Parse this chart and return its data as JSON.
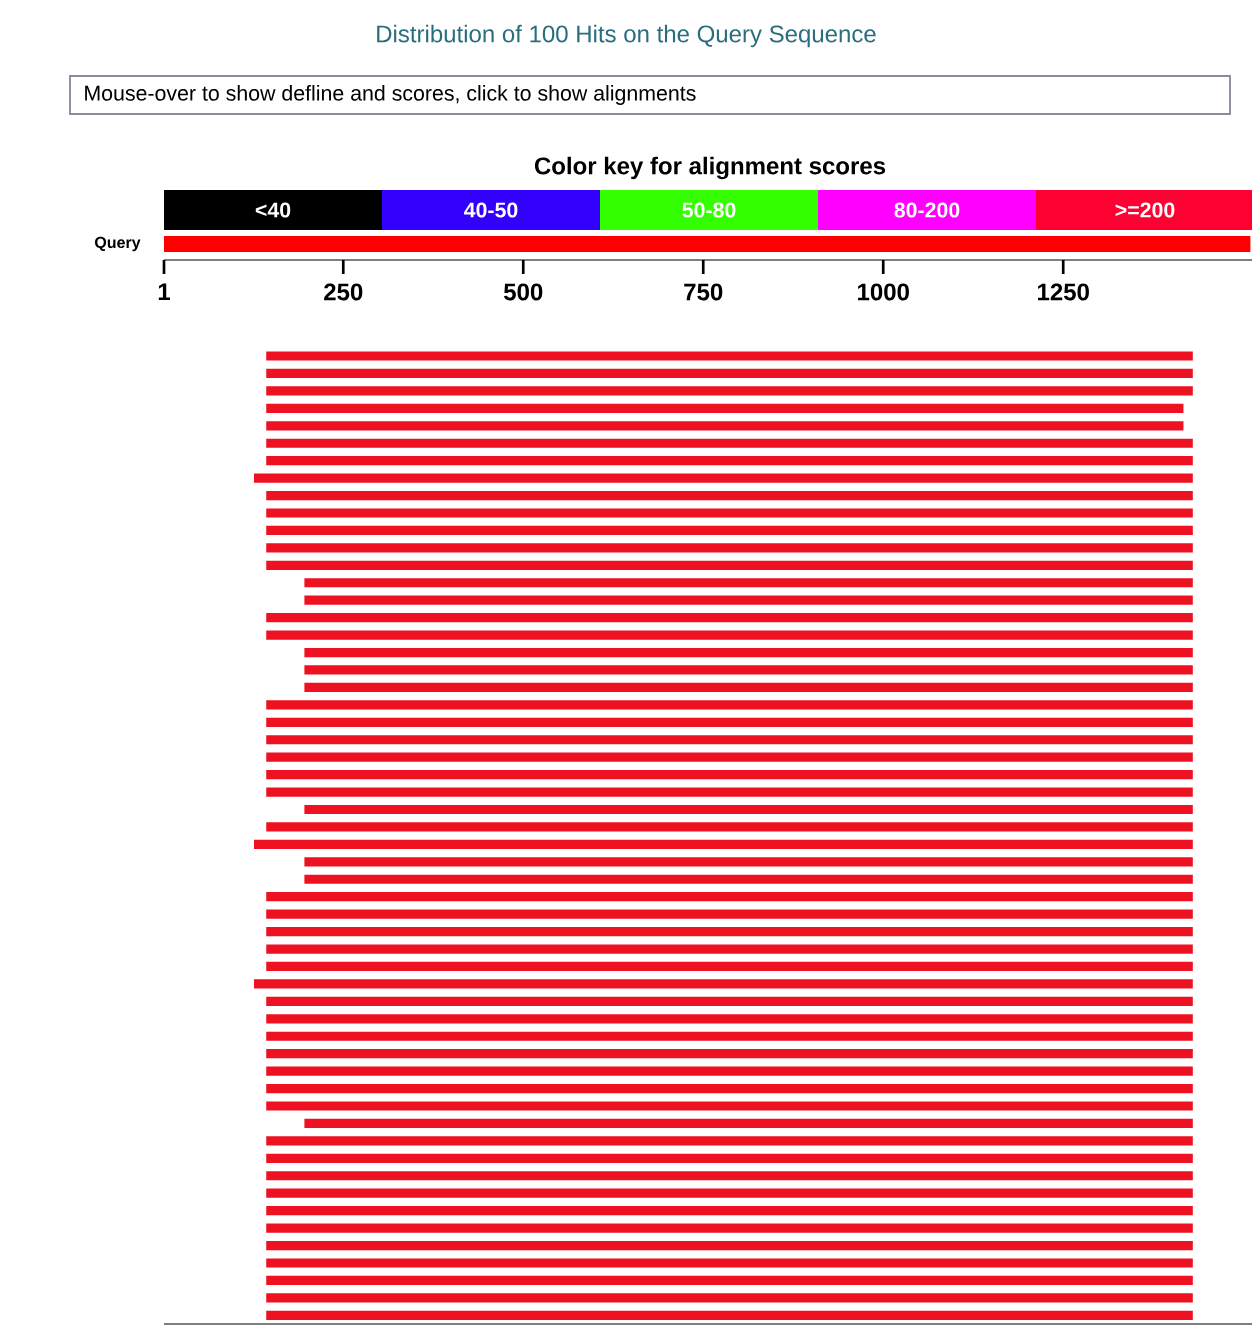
{
  "chart_data": [
    {
      "type": "other",
      "title": "Distribution of 100 Hits on the Query Sequence",
      "annotations": [
        "Mouse-over to show defline and scores, click to show alignments"
      ],
      "legend_title": "Color key for alignment scores",
      "categories": [
        "<40",
        "40-50",
        "50-80",
        "80-200",
        ">=200"
      ],
      "colors": [
        "#000000",
        "#3300ff",
        "#33ff00",
        "#ff00ff",
        "#ff0033"
      ]
    },
    {
      "type": "bar",
      "orientation": "horizontal",
      "categories": [
        "Query"
      ],
      "base": [
        1
      ],
      "values": [
        1509
      ],
      "color": "#ff0000",
      "xlim": [
        1,
        1515
      ],
      "xticks": [
        1,
        250,
        500,
        750,
        1000,
        1250
      ]
    },
    {
      "type": "bar",
      "orientation": "horizontal",
      "tick_labels": false,
      "xlim": [
        1,
        1515
      ],
      "color": "#ee1122",
      "categories": [
        null,
        null,
        null,
        null,
        null,
        null,
        null,
        null,
        null,
        null,
        null,
        null,
        null,
        null,
        null,
        null,
        null,
        null,
        null,
        null,
        null,
        null,
        null,
        null,
        null,
        null,
        null,
        null,
        null,
        null,
        null,
        null,
        null,
        null,
        null,
        null,
        null,
        null,
        null,
        null,
        null,
        null,
        null,
        null,
        null,
        null,
        null,
        null,
        null,
        null,
        null,
        null,
        null,
        null,
        null,
        null
      ],
      "base": [
        143,
        143,
        143,
        143,
        143,
        143,
        143,
        126,
        143,
        143,
        143,
        143,
        143,
        196,
        196,
        143,
        143,
        196,
        196,
        196,
        143,
        143,
        143,
        143,
        143,
        143,
        196,
        143,
        126,
        196,
        196,
        143,
        143,
        143,
        143,
        143,
        126,
        143,
        143,
        143,
        143,
        143,
        143,
        143,
        196,
        143,
        143,
        143,
        143,
        143,
        143,
        143,
        143,
        143,
        143,
        143
      ],
      "values": [
        1287,
        1287,
        1287,
        1274,
        1274,
        1287,
        1287,
        1304,
        1287,
        1287,
        1287,
        1287,
        1287,
        1234,
        1234,
        1287,
        1287,
        1234,
        1234,
        1234,
        1287,
        1287,
        1287,
        1287,
        1287,
        1287,
        1234,
        1287,
        1304,
        1234,
        1234,
        1287,
        1287,
        1287,
        1287,
        1287,
        1304,
        1287,
        1287,
        1287,
        1287,
        1287,
        1287,
        1287,
        1234,
        1287,
        1287,
        1287,
        1287,
        1287,
        1287,
        1287,
        1287,
        1287,
        1287,
        1287
      ]
    }
  ]
}
